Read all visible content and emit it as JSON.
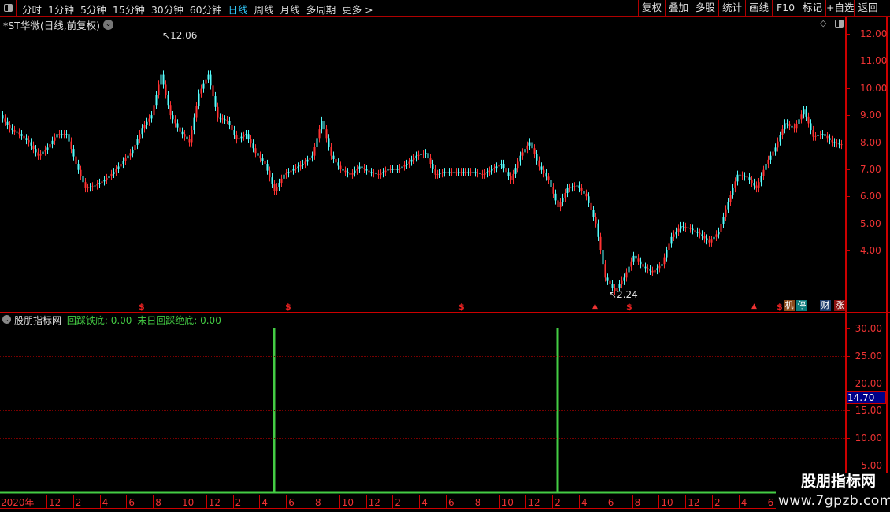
{
  "toolbar": {
    "periods": [
      "分时",
      "1分钟",
      "5分钟",
      "15分钟",
      "30分钟",
      "60分钟",
      "日线",
      "周线",
      "月线",
      "多周期",
      "更多 >"
    ],
    "active_period": "日线",
    "right_buttons": [
      "复权",
      "叠加",
      "多股",
      "统计",
      "画线",
      "F10",
      "标记",
      "+自选",
      "返回"
    ]
  },
  "main_chart": {
    "title": "*ST华微(日线,前复权)",
    "price_ticks": [
      "12.00",
      "11.00",
      "10.00",
      "9.00",
      "8.00",
      "7.00",
      "6.00",
      "5.00",
      "4.00"
    ],
    "high_label": "12.06",
    "low_label": "2.24",
    "up_color": "#ff3232",
    "down_color": "#54fcfc",
    "closes": [
      9.0,
      8.5,
      8.3,
      8.0,
      7.5,
      7.8,
      8.3,
      8.3,
      7.2,
      6.3,
      6.4,
      6.6,
      6.9,
      7.3,
      7.7,
      8.5,
      9.0,
      10.5,
      9.0,
      8.4,
      8.0,
      9.8,
      10.5,
      8.9,
      8.8,
      8.1,
      8.3,
      7.6,
      7.2,
      6.2,
      6.8,
      7.0,
      7.2,
      7.5,
      8.8,
      7.5,
      7.0,
      6.8,
      7.1,
      6.9,
      6.8,
      7.0,
      7.0,
      7.2,
      7.5,
      7.6,
      6.8,
      6.9,
      6.9,
      6.9,
      6.9,
      6.8,
      7.0,
      7.2,
      6.6,
      7.5,
      8.0,
      7.1,
      6.6,
      5.6,
      6.3,
      6.4,
      6.0,
      5.0,
      3.0,
      2.5,
      3.0,
      3.8,
      3.4,
      3.2,
      3.5,
      4.5,
      4.9,
      4.8,
      4.6,
      4.3,
      4.7,
      5.8,
      6.8,
      6.7,
      6.3,
      7.2,
      7.8,
      8.7,
      8.5,
      9.2,
      8.2,
      8.3,
      8.0,
      7.9
    ],
    "markers": {
      "dollar": "$",
      "badges": [
        "机",
        "停",
        "财",
        "涨"
      ]
    }
  },
  "indicator": {
    "name": "股朋指标网",
    "line1": "回踩铁底: 0.00",
    "line2": "末日回踩绝底: 0.00",
    "ticks": [
      "30.00",
      "25.00",
      "20.00",
      "15.00",
      "10.00",
      "5.00"
    ],
    "current_value": "14.70",
    "spike_value": 30,
    "spike_indices": [
      29,
      59
    ],
    "color": "#44cc44"
  },
  "date_axis": [
    "2020年",
    "12",
    "2",
    "4",
    "6",
    "8",
    "10",
    "12",
    "2",
    "4",
    "6",
    "8",
    "10",
    "12",
    "2",
    "4",
    "6",
    "8",
    "10",
    "12",
    "2",
    "4",
    "6",
    "8",
    "10",
    "12",
    "2",
    "4",
    "6"
  ],
  "watermark": {
    "name": "股朋指标网",
    "url": "www.7gpzb.com"
  }
}
